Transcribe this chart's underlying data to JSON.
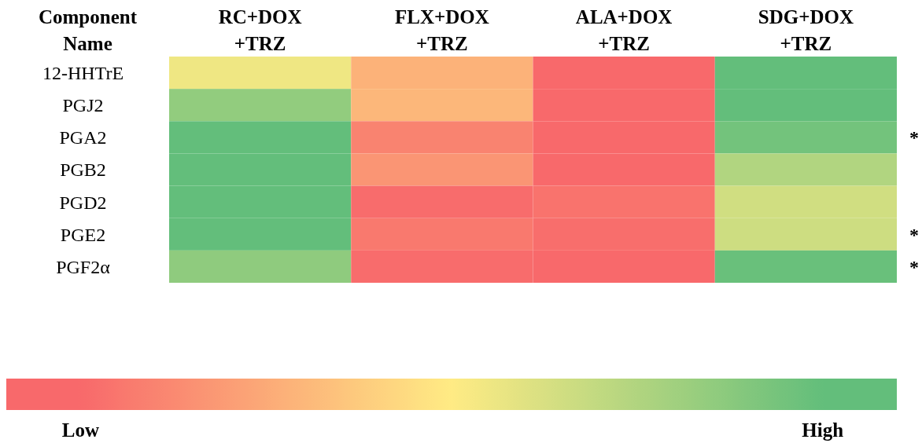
{
  "chart_data": {
    "type": "heatmap",
    "ylabel": "Component Name",
    "categories": [
      "RC+DOX +TRZ",
      "FLX+DOX +TRZ",
      "ALA+DOX +TRZ",
      "SDG+DOX +TRZ"
    ],
    "y_categories": [
      "12-HHTrE",
      "PGJ2",
      "PGA2",
      "PGB2",
      "PGD2",
      "PGE2",
      "PGF2α"
    ],
    "y2_categories": [
      null,
      null,
      "*",
      null,
      null,
      "*",
      "*"
    ],
    "cells": [
      [
        0.55,
        0.28,
        0,
        1
      ],
      [
        0.85,
        0.3,
        0,
        1
      ],
      [
        1,
        0.1,
        0,
        0.95
      ],
      [
        1,
        0.17,
        0,
        0.75
      ],
      [
        1,
        0.01,
        0.04,
        0.65
      ],
      [
        1,
        0.06,
        0.02,
        0.66
      ],
      [
        0.86,
        0.01,
        0,
        0.98
      ]
    ],
    "clim": [
      -0.1,
      1.1
    ],
    "cticks": [
      {
        "value": 0,
        "label": "Low"
      },
      {
        "value": 1,
        "label": "High"
      }
    ]
  }
}
